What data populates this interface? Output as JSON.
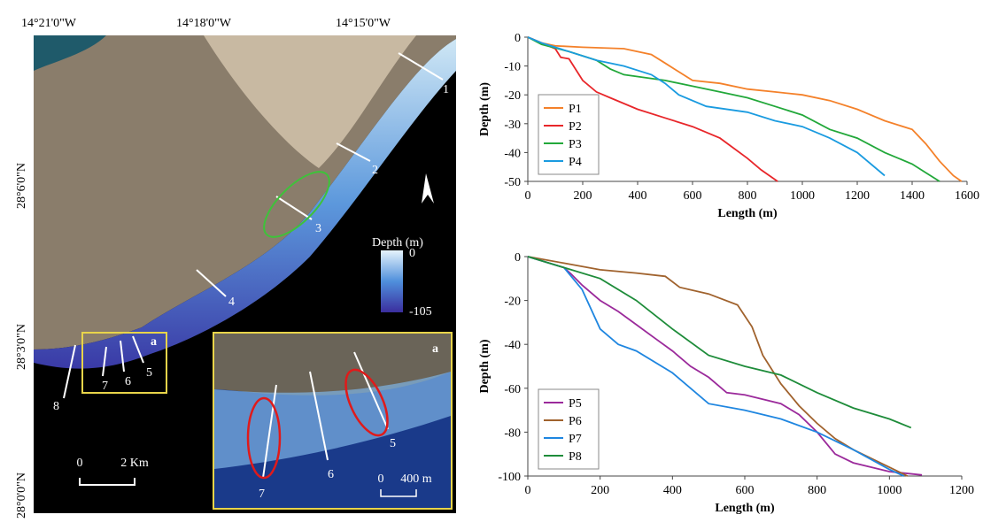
{
  "map": {
    "lon_labels": [
      "14°21'0\"W",
      "14°18'0\"W",
      "14°15'0\"W"
    ],
    "lat_labels": [
      "28°6'0\"N",
      "28°3'0\"N",
      "28°0'0\"N"
    ],
    "profile_labels": [
      "1",
      "2",
      "3",
      "4",
      "5",
      "6",
      "7",
      "8"
    ],
    "box_tag": "a",
    "inset_tag": "a",
    "inset_labels": [
      "7",
      "6",
      "5"
    ],
    "depth_legend": {
      "title": "Depth (m)",
      "top": "0",
      "bottom": "-105"
    },
    "scale": {
      "zero": "0",
      "label": "2 Km"
    },
    "inset_scale": {
      "zero": "0",
      "label": "400 m"
    }
  },
  "chart_data": [
    {
      "type": "line",
      "x_label": "Length (m)",
      "y_label": "Depth (m)",
      "xlim": [
        0,
        1600
      ],
      "xticks": [
        0,
        200,
        400,
        600,
        800,
        1000,
        1200,
        1400,
        1600
      ],
      "ylim": [
        -50,
        0
      ],
      "yticks": [
        0,
        -10,
        -20,
        -30,
        -40,
        -50
      ],
      "legend": "lower left",
      "series": [
        {
          "name": "P1",
          "color": "#f4812a",
          "x": [
            0,
            50,
            100,
            200,
            350,
            450,
            500,
            550,
            600,
            700,
            800,
            900,
            1000,
            1100,
            1200,
            1300,
            1400,
            1450,
            1500,
            1550,
            1580
          ],
          "values": [
            0,
            -2,
            -3,
            -3.5,
            -4,
            -6,
            -9,
            -12,
            -15,
            -16,
            -18,
            -19,
            -20,
            -22,
            -25,
            -29,
            -32,
            -37,
            -43,
            -48,
            -50
          ]
        },
        {
          "name": "P2",
          "color": "#e8262a",
          "x": [
            0,
            50,
            100,
            120,
            150,
            180,
            200,
            250,
            300,
            400,
            500,
            600,
            700,
            800,
            850,
            910
          ],
          "values": [
            0,
            -2,
            -4,
            -7,
            -7.5,
            -12,
            -15,
            -19,
            -21,
            -25,
            -28,
            -31,
            -35,
            -42,
            -46,
            -50
          ]
        },
        {
          "name": "P3",
          "color": "#22a83a",
          "x": [
            0,
            50,
            150,
            250,
            300,
            350,
            500,
            600,
            700,
            800,
            900,
            1000,
            1100,
            1200,
            1300,
            1400,
            1450,
            1500
          ],
          "values": [
            0,
            -2.5,
            -5,
            -8,
            -11,
            -13,
            -15,
            -17,
            -19,
            -21,
            -24,
            -27,
            -32,
            -35,
            -40,
            -44,
            -47,
            -50
          ]
        },
        {
          "name": "P4",
          "color": "#1a9be0",
          "x": [
            0,
            50,
            150,
            250,
            350,
            450,
            500,
            550,
            650,
            800,
            900,
            1000,
            1100,
            1200,
            1300
          ],
          "values": [
            0,
            -2,
            -5,
            -8,
            -10,
            -13,
            -16,
            -20,
            -24,
            -26,
            -29,
            -31,
            -35,
            -40,
            -48
          ]
        }
      ]
    },
    {
      "type": "line",
      "x_label": "Length (m)",
      "y_label": "Depth (m)",
      "xlim": [
        0,
        1200
      ],
      "xticks": [
        0,
        200,
        400,
        600,
        800,
        1000,
        1200
      ],
      "ylim": [
        -100,
        0
      ],
      "yticks": [
        0,
        -20,
        -40,
        -60,
        -80,
        -100
      ],
      "legend": "lower left",
      "series": [
        {
          "name": "P5",
          "color": "#9b2a9b",
          "x": [
            0,
            100,
            120,
            150,
            200,
            250,
            300,
            350,
            400,
            450,
            500,
            550,
            600,
            700,
            750,
            800,
            850,
            900,
            1000,
            1090
          ],
          "values": [
            0,
            -5,
            -8,
            -13,
            -20,
            -25,
            -31,
            -37,
            -43,
            -50,
            -55,
            -62,
            -63,
            -67,
            -72,
            -80,
            -90,
            -94,
            -98,
            -99.5
          ]
        },
        {
          "name": "P6",
          "color": "#a0622d",
          "x": [
            0,
            100,
            200,
            300,
            380,
            420,
            500,
            580,
            620,
            650,
            700,
            750,
            800,
            850,
            900,
            1000,
            1050
          ],
          "values": [
            0,
            -3,
            -6,
            -7.5,
            -9,
            -14,
            -17,
            -22,
            -32,
            -45,
            -58,
            -68,
            -76,
            -83,
            -88,
            -96,
            -100
          ]
        },
        {
          "name": "P7",
          "color": "#1f86e0",
          "x": [
            0,
            100,
            150,
            200,
            250,
            300,
            400,
            500,
            600,
            700,
            800,
            900,
            1000,
            1040
          ],
          "values": [
            0,
            -5,
            -15,
            -33,
            -40,
            -43,
            -53,
            -67,
            -70,
            -74,
            -80,
            -88,
            -97,
            -100
          ]
        },
        {
          "name": "P8",
          "color": "#1e8c3a",
          "x": [
            0,
            100,
            200,
            300,
            400,
            500,
            600,
            700,
            800,
            900,
            1000,
            1060
          ],
          "values": [
            0,
            -5,
            -10,
            -20,
            -33,
            -45,
            -50,
            -54,
            -62,
            -69,
            -74,
            -78
          ]
        }
      ]
    }
  ]
}
